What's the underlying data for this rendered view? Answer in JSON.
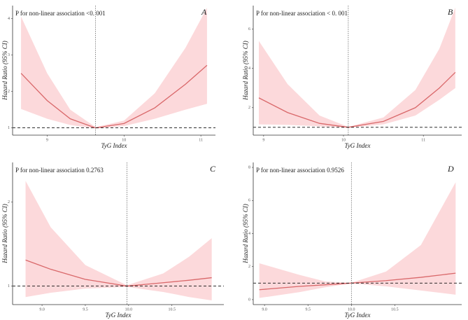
{
  "chart_data": [
    {
      "type": "line",
      "label": "A",
      "title": "P for non-linear association <0. 001",
      "x_label": "TyG Index",
      "y_label": "Hazard Ratio (95% CI)",
      "x": [
        8.66,
        9.0,
        9.3,
        9.63,
        10.0,
        10.4,
        10.8,
        11.08
      ],
      "series": [
        {
          "color": "#d9686a",
          "band_color": "#fcd9db",
          "values": [
            2.5,
            1.75,
            1.25,
            1.0,
            1.12,
            1.55,
            2.2,
            2.72
          ],
          "lower": [
            1.52,
            1.25,
            1.08,
            0.98,
            1.05,
            1.25,
            1.5,
            1.66
          ],
          "upper": [
            4.06,
            2.5,
            1.5,
            1.02,
            1.2,
            1.95,
            3.2,
            4.3
          ]
        }
      ],
      "xlim": [
        8.55,
        11.19
      ],
      "xticks": [
        9,
        10,
        11
      ],
      "ylim": [
        0.8,
        4.36
      ],
      "yticks": [
        1,
        2,
        3,
        4
      ],
      "ref_x": 9.63,
      "ref_y": 1
    },
    {
      "type": "line",
      "label": "B",
      "title": "P for non-linear association < 0. 001",
      "x_label": "TyG Index",
      "y_label": "Hazard Ratio (95% CI)",
      "x": [
        8.94,
        9.3,
        9.7,
        10.06,
        10.5,
        10.9,
        11.2,
        11.4
      ],
      "series": [
        {
          "color": "#d9686a",
          "band_color": "#fcd9db",
          "values": [
            2.5,
            1.75,
            1.2,
            1.0,
            1.3,
            2.0,
            3.0,
            3.8
          ],
          "lower": [
            1.15,
            1.12,
            1.05,
            0.98,
            1.15,
            1.6,
            2.4,
            3.0
          ],
          "upper": [
            5.4,
            3.2,
            1.6,
            1.02,
            1.5,
            2.9,
            5.0,
            7.1
          ]
        }
      ],
      "xlim": [
        8.87,
        11.48
      ],
      "xticks": [
        9,
        10,
        11
      ],
      "ylim": [
        0.6,
        7.2
      ],
      "yticks": [
        2,
        4,
        6
      ],
      "ref_x": 10.06,
      "ref_y": 1
    },
    {
      "type": "line",
      "label": "C",
      "title": "P for non-linear association 0.2763",
      "x_label": "TyG Index",
      "y_label": "Hazard Ratio (95% CI)",
      "x": [
        8.81,
        9.1,
        9.5,
        9.98,
        10.4,
        10.7,
        10.96
      ],
      "series": [
        {
          "color": "#d9686a",
          "band_color": "#fcd9db",
          "values": [
            1.31,
            1.2,
            1.08,
            1.0,
            1.04,
            1.07,
            1.1
          ],
          "lower": [
            0.87,
            0.92,
            0.97,
            0.99,
            0.93,
            0.87,
            0.83
          ],
          "upper": [
            2.25,
            1.7,
            1.25,
            1.01,
            1.15,
            1.35,
            1.57
          ]
        }
      ],
      "xlim": [
        8.66,
        11.1
      ],
      "xticks": [
        {
          "value": 9,
          "label": "9.0"
        },
        9.5,
        {
          "value": 10,
          "label": "10.0"
        },
        10.5
      ],
      "ylim": [
        0.78,
        2.47
      ],
      "yticks": [
        1,
        2
      ],
      "ref_x": 9.98,
      "ref_y": 1
    },
    {
      "type": "line",
      "label": "D",
      "title": "P for non-linear association 0.9526",
      "x_label": "TyG Index",
      "y_label": "Hazard Ratio (95% CI)",
      "x": [
        8.94,
        9.4,
        9.7,
        10.0,
        10.4,
        10.8,
        11.2
      ],
      "series": [
        {
          "color": "#d9686a",
          "band_color": "#fcd9db",
          "values": [
            0.6,
            0.8,
            0.9,
            1.0,
            1.15,
            1.35,
            1.6
          ],
          "lower": [
            0.1,
            0.45,
            0.75,
            0.98,
            0.8,
            0.55,
            0.3
          ],
          "upper": [
            2.2,
            1.5,
            1.1,
            1.02,
            1.7,
            3.3,
            7.1
          ]
        }
      ],
      "xlim": [
        8.87,
        11.27
      ],
      "xticks": [
        {
          "value": 9,
          "label": "9.0"
        },
        9.5,
        {
          "value": 10,
          "label": "10.0"
        },
        10.5
      ],
      "ylim": [
        -0.3,
        8.3
      ],
      "yticks": [
        0,
        2,
        4,
        6,
        8
      ],
      "ref_x": 10.0,
      "ref_y": 1
    }
  ]
}
